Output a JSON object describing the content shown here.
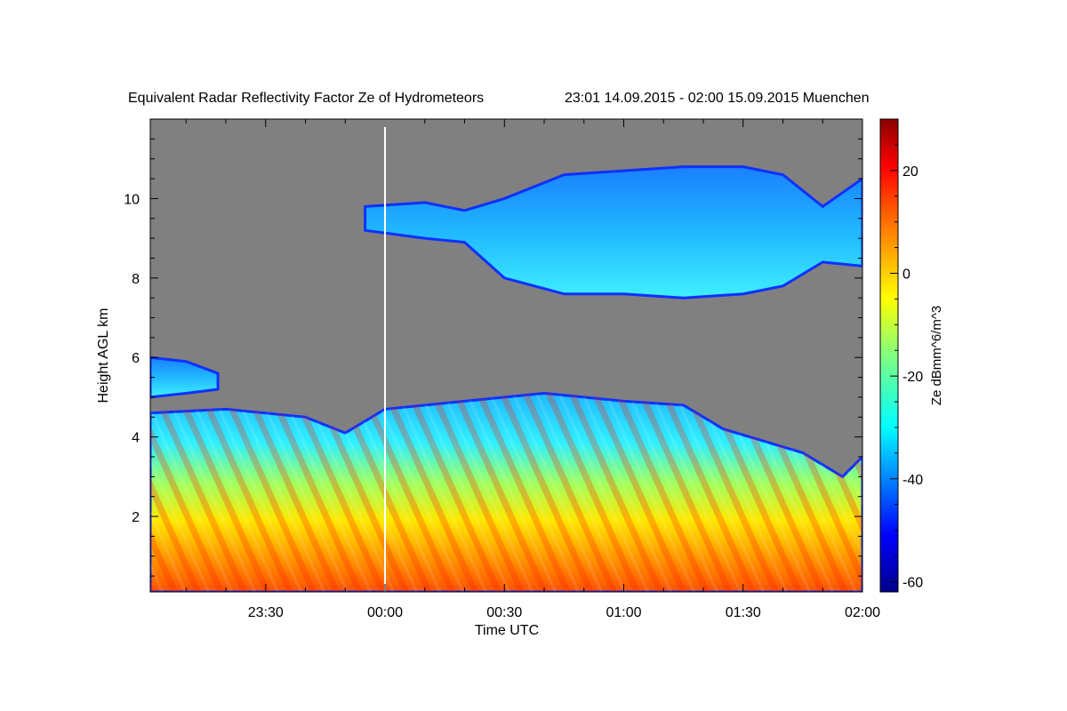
{
  "chart_data": {
    "type": "heatmap",
    "title": "Equivalent Radar Reflectivity Factor Ze of Hydrometeors",
    "subtitle": "23:01 14.09.2015 - 02:00 15.09.2015 Muenchen",
    "xlabel": "Time UTC",
    "ylabel": "Height AGL km",
    "x_range": [
      "23:01",
      "02:00"
    ],
    "y_range_km": [
      0.1,
      12.0
    ],
    "x_ticks": [
      "23:30",
      "00:00",
      "00:30",
      "01:00",
      "01:30",
      "02:00"
    ],
    "y_ticks": [
      "2",
      "4",
      "6",
      "8",
      "10"
    ],
    "colorbar": {
      "label": "Ze dBmm^6/m^3",
      "range": [
        -62,
        30
      ],
      "ticks": [
        "20",
        "0",
        "-20",
        "-40",
        "-60"
      ],
      "colormap": "jet"
    },
    "no_data_color": "#808080",
    "marker_line": {
      "time": "00:00",
      "color": "#ffffff"
    },
    "layers": [
      {
        "description": "upper cloud layer",
        "time_range": [
          "23:55",
          "02:00"
        ],
        "base_top_km": [
          [
            "23:55",
            9.2,
            9.8
          ],
          [
            "00:10",
            9.0,
            9.9
          ],
          [
            "00:20",
            8.9,
            9.7
          ],
          [
            "00:30",
            8.0,
            10.0
          ],
          [
            "00:45",
            7.6,
            10.6
          ],
          [
            "01:00",
            7.6,
            10.7
          ],
          [
            "01:15",
            7.5,
            10.8
          ],
          [
            "01:30",
            7.6,
            10.8
          ],
          [
            "01:40",
            7.8,
            10.6
          ],
          [
            "01:50",
            8.4,
            9.8
          ],
          [
            "02:00",
            8.3,
            10.5
          ]
        ],
        "typical_ze_dbz": -25
      },
      {
        "description": "isolated mid-level patch",
        "time_range": [
          "23:01",
          "23:18"
        ],
        "base_top_km": [
          [
            "23:01",
            5.0,
            6.0
          ],
          [
            "23:10",
            5.1,
            5.9
          ],
          [
            "23:18",
            5.2,
            5.6
          ]
        ],
        "typical_ze_dbz": -25
      },
      {
        "description": "precipitating lower layer",
        "time_range": [
          "23:01",
          "02:00"
        ],
        "top_km": [
          [
            "23:01",
            4.6
          ],
          [
            "23:20",
            4.7
          ],
          [
            "23:40",
            4.5
          ],
          [
            "23:50",
            4.1
          ],
          [
            "00:00",
            4.7
          ],
          [
            "00:20",
            4.9
          ],
          [
            "00:40",
            5.1
          ],
          [
            "01:00",
            4.9
          ],
          [
            "01:15",
            4.8
          ],
          [
            "01:25",
            4.2
          ],
          [
            "01:35",
            3.9
          ],
          [
            "01:45",
            3.6
          ],
          [
            "01:55",
            3.0
          ],
          [
            "02:00",
            3.5
          ]
        ],
        "max_ze_dbz": 25,
        "min_ze_dbz": -45
      }
    ]
  }
}
